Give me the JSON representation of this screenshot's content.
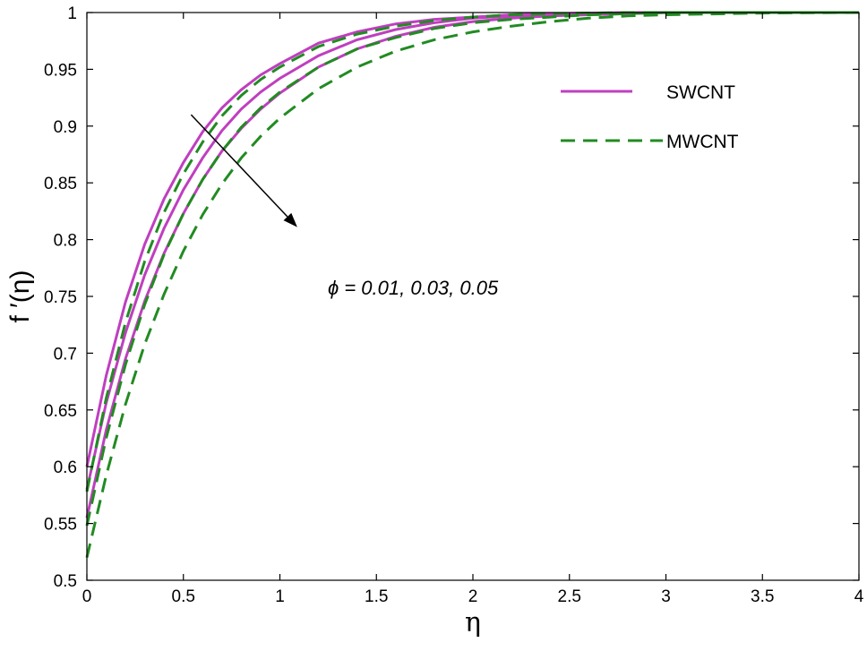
{
  "chart_data": {
    "type": "line",
    "title": "",
    "xlabel": "η",
    "ylabel": "f ′(η)",
    "xlim": [
      0,
      4
    ],
    "ylim": [
      0.5,
      1
    ],
    "x_ticks": [
      "0",
      "0.5",
      "1",
      "1.5",
      "2",
      "2.5",
      "3",
      "3.5",
      "4"
    ],
    "y_ticks": [
      "0.5",
      "0.55",
      "0.6",
      "0.65",
      "0.7",
      "0.75",
      "0.8",
      "0.85",
      "0.9",
      "0.95",
      "1"
    ],
    "grid": false,
    "legend_position": "top-right",
    "legend": [
      {
        "name": "SWCNT",
        "style": "solid",
        "color": "#bf3fbf"
      },
      {
        "name": "MWCNT",
        "style": "dashed",
        "color": "#228b22"
      }
    ],
    "annotation": {
      "text": "ϕ = 0.01, 0.03, 0.05",
      "arrow": {
        "from": [
          0.54,
          0.91
        ],
        "to": [
          1.09,
          0.811
        ]
      }
    },
    "x": [
      0,
      0.1,
      0.2,
      0.3,
      0.4,
      0.5,
      0.6,
      0.7,
      0.8,
      0.9,
      1.0,
      1.2,
      1.4,
      1.6,
      1.8,
      2.0,
      2.2,
      2.4,
      2.6,
      2.8,
      3.0,
      3.5,
      4.0
    ],
    "series": [
      {
        "group": "SWCNT",
        "phi": 0.01,
        "color": "#bf3fbf",
        "dash": "solid",
        "values": [
          0.6,
          0.68,
          0.745,
          0.796,
          0.836,
          0.868,
          0.895,
          0.916,
          0.932,
          0.945,
          0.955,
          0.973,
          0.983,
          0.99,
          0.994,
          0.996,
          0.998,
          0.999,
          0.9995,
          1.0,
          1.0,
          1.0,
          1.0
        ]
      },
      {
        "group": "SWCNT",
        "phi": 0.03,
        "color": "#bf3fbf",
        "dash": "solid",
        "values": [
          0.58,
          0.656,
          0.718,
          0.769,
          0.81,
          0.844,
          0.872,
          0.896,
          0.915,
          0.93,
          0.942,
          0.962,
          0.976,
          0.985,
          0.991,
          0.995,
          0.997,
          0.998,
          0.999,
          1.0,
          1.0,
          1.0,
          1.0
        ]
      },
      {
        "group": "SWCNT",
        "phi": 0.05,
        "color": "#bf3fbf",
        "dash": "solid",
        "values": [
          0.555,
          0.632,
          0.695,
          0.746,
          0.788,
          0.823,
          0.853,
          0.878,
          0.898,
          0.915,
          0.929,
          0.952,
          0.968,
          0.979,
          0.987,
          0.992,
          0.995,
          0.997,
          0.998,
          0.999,
          1.0,
          1.0,
          1.0
        ]
      },
      {
        "group": "MWCNT",
        "phi": 0.01,
        "color": "#228b22",
        "dash": "dashed",
        "values": [
          0.578,
          0.66,
          0.727,
          0.781,
          0.824,
          0.858,
          0.886,
          0.909,
          0.927,
          0.941,
          0.952,
          0.97,
          0.981,
          0.988,
          0.993,
          0.996,
          0.998,
          0.999,
          0.9995,
          1.0,
          1.0,
          1.0,
          1.0
        ]
      },
      {
        "group": "MWCNT",
        "phi": 0.03,
        "color": "#228b22",
        "dash": "dashed",
        "values": [
          0.548,
          0.625,
          0.69,
          0.743,
          0.787,
          0.823,
          0.853,
          0.878,
          0.899,
          0.916,
          0.93,
          0.952,
          0.968,
          0.978,
          0.986,
          0.991,
          0.994,
          0.996,
          0.998,
          0.999,
          1.0,
          1.0,
          1.0
        ]
      },
      {
        "group": "MWCNT",
        "phi": 0.05,
        "color": "#228b22",
        "dash": "dashed",
        "values": [
          0.52,
          0.592,
          0.655,
          0.708,
          0.752,
          0.79,
          0.822,
          0.849,
          0.872,
          0.891,
          0.907,
          0.933,
          0.952,
          0.966,
          0.976,
          0.983,
          0.988,
          0.992,
          0.995,
          0.997,
          0.998,
          0.9995,
          1.0
        ]
      }
    ]
  }
}
